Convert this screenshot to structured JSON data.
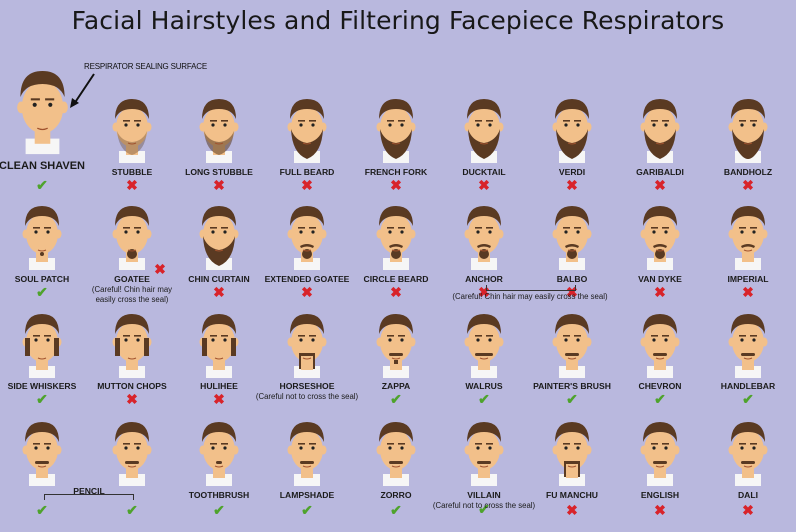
{
  "title": "Facial Hairstyles and Filtering Facepiece Respirators",
  "annotation": "RESPIRATOR SEALING SURFACE",
  "colors": {
    "background": "#b9b8de",
    "check": "#4ea32c",
    "cross": "#d8232a",
    "skin": "#f2c08a",
    "hair": "#5a3a22"
  },
  "icons": {
    "check": "check-icon",
    "cross": "cross-icon"
  },
  "marks": {
    "check": "✔",
    "cross": "✖"
  },
  "styles": [
    {
      "id": "clean-shaven",
      "label": "CLEAN SHAVEN",
      "ok": true
    },
    {
      "id": "stubble",
      "label": "STUBBLE",
      "ok": false
    },
    {
      "id": "long-stubble",
      "label": "LONG STUBBLE",
      "ok": false
    },
    {
      "id": "full-beard",
      "label": "FULL BEARD",
      "ok": false
    },
    {
      "id": "french-fork",
      "label": "FRENCH FORK",
      "ok": false
    },
    {
      "id": "ducktail",
      "label": "DUCKTAIL",
      "ok": false
    },
    {
      "id": "verdi",
      "label": "VERDI",
      "ok": false
    },
    {
      "id": "garibaldi",
      "label": "GARIBALDI",
      "ok": false
    },
    {
      "id": "bandholz",
      "label": "BANDHOLZ",
      "ok": false
    },
    {
      "id": "soul-patch",
      "label": "SOUL PATCH",
      "ok": true
    },
    {
      "id": "goatee",
      "label": "GOATEE",
      "ok": false,
      "note": "(Careful! Chin hair may\neasily cross the seal)"
    },
    {
      "id": "chin-curtain",
      "label": "CHIN CURTAIN",
      "ok": false
    },
    {
      "id": "extended-goatee",
      "label": "EXTENDED GOATEE",
      "ok": false
    },
    {
      "id": "circle-beard",
      "label": "CIRCLE BEARD",
      "ok": false
    },
    {
      "id": "anchor",
      "label": "ANCHOR",
      "ok": false
    },
    {
      "id": "balbo",
      "label": "BALBO",
      "ok": false
    },
    {
      "id": "van-dyke",
      "label": "VAN DYKE",
      "ok": false
    },
    {
      "id": "imperial",
      "label": "IMPERIAL",
      "ok": false
    },
    {
      "id": "side-whiskers",
      "label": "SIDE WHISKERS",
      "ok": true
    },
    {
      "id": "mutton-chops",
      "label": "MUTTON CHOPS",
      "ok": false
    },
    {
      "id": "hulihee",
      "label": "HULIHEE",
      "ok": false
    },
    {
      "id": "horseshoe",
      "label": "HORSESHOE",
      "ok": false,
      "note": "(Careful not to cross the seal)"
    },
    {
      "id": "zappa",
      "label": "ZAPPA",
      "ok": true
    },
    {
      "id": "walrus",
      "label": "WALRUS",
      "ok": true
    },
    {
      "id": "painters-brush",
      "label": "PAINTER'S BRUSH",
      "ok": true
    },
    {
      "id": "chevron",
      "label": "CHEVRON",
      "ok": true
    },
    {
      "id": "handlebar",
      "label": "HANDLEBAR",
      "ok": true
    },
    {
      "id": "pencil-1",
      "label": "",
      "ok": true
    },
    {
      "id": "pencil-2",
      "label": "",
      "ok": true
    },
    {
      "id": "toothbrush",
      "label": "TOOTHBRUSH",
      "ok": true
    },
    {
      "id": "lampshade",
      "label": "LAMPSHADE",
      "ok": true
    },
    {
      "id": "zorro",
      "label": "ZORRO",
      "ok": true
    },
    {
      "id": "villain",
      "label": "VILLAIN",
      "ok": true,
      "note": "(Careful not to cross the seal)"
    },
    {
      "id": "fu-manchu",
      "label": "FU MANCHU",
      "ok": false
    },
    {
      "id": "english",
      "label": "ENGLISH",
      "ok": false
    },
    {
      "id": "dali",
      "label": "DALI",
      "ok": false
    }
  ],
  "group_notes": {
    "anchor_balbo": "(Careful! Chin hair may easily cross the seal)",
    "pencil": "PENCIL"
  }
}
